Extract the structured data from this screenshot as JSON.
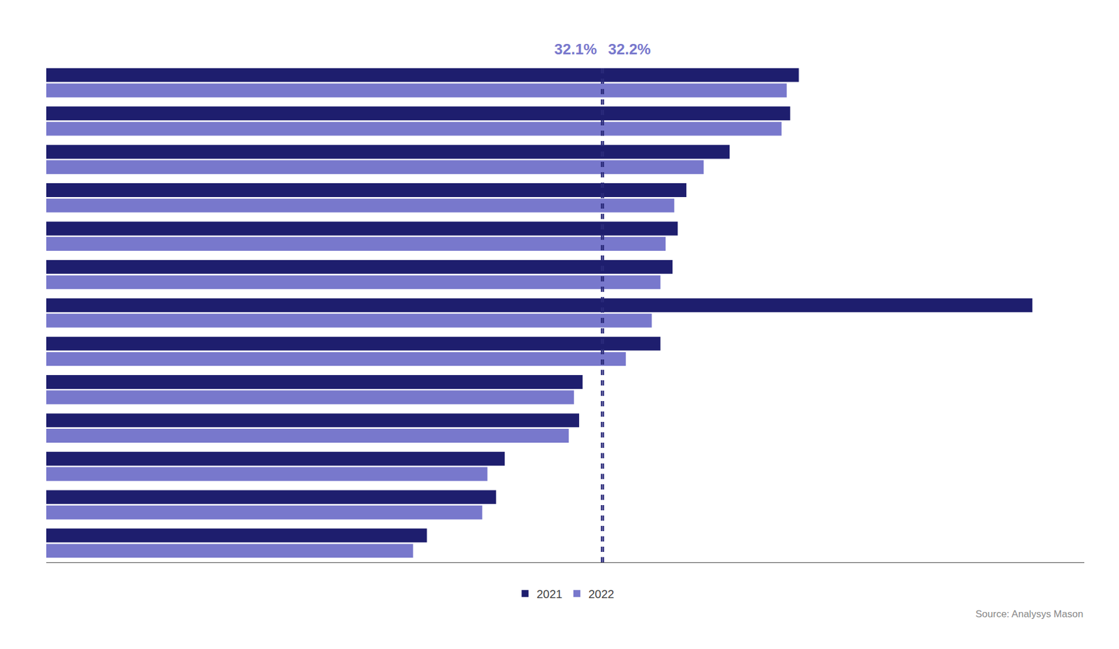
{
  "chart_data": {
    "type": "bar",
    "orientation": "horizontal",
    "categories": [
      null,
      null,
      null,
      null,
      null,
      null,
      null,
      null,
      null,
      null,
      null,
      null,
      null
    ],
    "series": [
      {
        "name": "2021",
        "color": "#1e1e6e",
        "values": [
          43.5,
          43.0,
          39.5,
          37.0,
          36.5,
          36.2,
          57.0,
          35.5,
          31.0,
          30.8,
          26.5,
          26.0,
          22.0
        ]
      },
      {
        "name": "2022",
        "color": "#7878cc",
        "values": [
          42.8,
          42.5,
          38.0,
          36.3,
          35.8,
          35.5,
          35.0,
          33.5,
          30.5,
          30.2,
          25.5,
          25.2,
          21.2
        ]
      }
    ],
    "xlim": [
      0,
      60
    ],
    "tick_labels": false,
    "grid": false,
    "legend": "bottom",
    "reference_lines": [
      {
        "x": 32.1,
        "label": "32.1%",
        "color": "#2a2a7a",
        "label_color": "#7878cc",
        "line_style": "dashed"
      },
      {
        "x": 32.2,
        "label": "32.2%",
        "color": "#2a2a7a",
        "label_color": "#7878cc",
        "line_style": "dashed"
      }
    ],
    "source": "Source: Analysys Mason"
  }
}
